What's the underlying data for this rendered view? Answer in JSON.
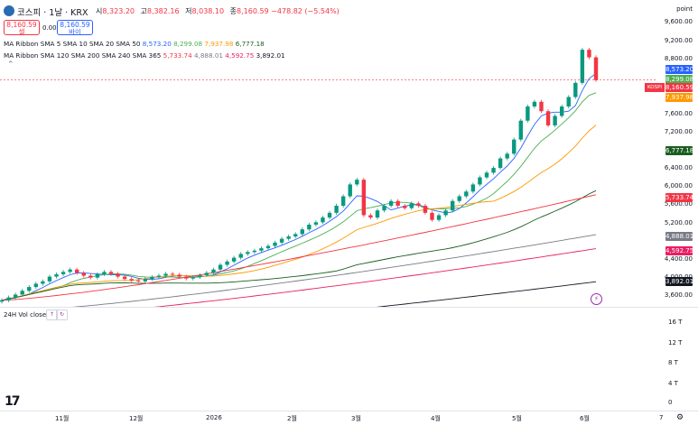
{
  "header": {
    "symbol": "코스피 · 1날 · KRX",
    "ohlc": [
      {
        "key": "시",
        "value": "8,323.20"
      },
      {
        "key": "고",
        "value": "8,382.16"
      },
      {
        "key": "저",
        "value": "8,038.10"
      },
      {
        "key": "종",
        "value": "8,160.59"
      }
    ],
    "change": "−478.82 (−5.54%)",
    "sell_price": "8,160.59",
    "sell_label": "셀",
    "buy_price": "8,160.59",
    "buy_label": "바이",
    "spread": "0.00"
  },
  "indicators": [
    {
      "label": "MA Ribbon SMA 5 SMA 10 SMA 20 SMA 50",
      "values": [
        {
          "v": "8,573.20",
          "color": "#2962ff"
        },
        {
          "v": "8,299.08",
          "color": "#4caf50"
        },
        {
          "v": "7,937.98",
          "color": "#ff9800"
        },
        {
          "v": "6,777.18",
          "color": "#1b5e20"
        }
      ]
    },
    {
      "label": "MA Ribbon SMA 120 SMA 200 SMA 240 SMA 365",
      "values": [
        {
          "v": "5,733.74",
          "color": "#f23645"
        },
        {
          "v": "4,888.01",
          "color": "#787b86"
        },
        {
          "v": "4,592.75",
          "color": "#e91e63"
        },
        {
          "v": "3,892.01",
          "color": "#131722"
        }
      ]
    }
  ],
  "price_axis": {
    "title": "point",
    "ticks": [
      "9,600.00",
      "9,200.00",
      "8,800.00",
      "7,600.00",
      "7,200.00",
      "6,400.00",
      "6,000.00",
      "5,600.00",
      "5,200.00",
      "4,400.00",
      "4,000.00",
      "3,600.00"
    ],
    "kospi_tag": "KOSPI",
    "tags": [
      {
        "v": "8,573.20",
        "color": "#2962ff"
      },
      {
        "v": "8,299.08",
        "color": "#4caf50"
      },
      {
        "v": "8,160.59",
        "color": "#f23645"
      },
      {
        "v": "7,937.98",
        "color": "#ff9800"
      },
      {
        "v": "6,777.18",
        "color": "#1b5e20"
      },
      {
        "v": "5,733.74",
        "color": "#f23645"
      },
      {
        "v": "4,888.01",
        "color": "#787b86"
      },
      {
        "v": "4,592.75",
        "color": "#e91e63"
      },
      {
        "v": "3,892.01",
        "color": "#131722"
      }
    ]
  },
  "volume": {
    "title": "24H Vol close",
    "btn1": "↑",
    "btn2": "↻",
    "ticks": [
      "16 T",
      "12 T",
      "8 T",
      "4 T",
      "0"
    ]
  },
  "time_axis": [
    "11월",
    "12월",
    "2026",
    "2월",
    "3월",
    "4월",
    "5월",
    "6월",
    "7"
  ],
  "icons": {
    "logo": "tradingview-logo",
    "settings": "gear-icon",
    "alert": "lightning-icon"
  },
  "chart_data": {
    "type": "candlestick",
    "ylim": [
      3400,
      9700
    ],
    "closes": [
      3500,
      3560,
      3620,
      3700,
      3780,
      3850,
      3900,
      4000,
      4050,
      4100,
      4150,
      4080,
      4020,
      3980,
      4050,
      4100,
      4060,
      4000,
      3950,
      3920,
      3900,
      3950,
      3990,
      4020,
      4060,
      4040,
      4000,
      3960,
      3990,
      4030,
      4080,
      4150,
      4250,
      4320,
      4400,
      4480,
      4520,
      4550,
      4600,
      4650,
      4720,
      4800,
      4850,
      4900,
      5000,
      5100,
      5150,
      5250,
      5350,
      5500,
      5700,
      5950,
      6050,
      5300,
      5250,
      5400,
      5500,
      5600,
      5500,
      5450,
      5550,
      5500,
      5350,
      5200,
      5300,
      5400,
      5600,
      5700,
      5800,
      5950,
      6100,
      6200,
      6300,
      6500,
      6600,
      6900,
      7300,
      7600,
      7700,
      7500,
      7200,
      7400,
      7600,
      7800,
      8100,
      8800,
      8640,
      8160
    ],
    "sma_colors": [
      "#2962ff",
      "#4caf50",
      "#ff9800",
      "#1b5e20",
      "#f23645",
      "#787b86",
      "#e91e63",
      "#131722"
    ]
  }
}
